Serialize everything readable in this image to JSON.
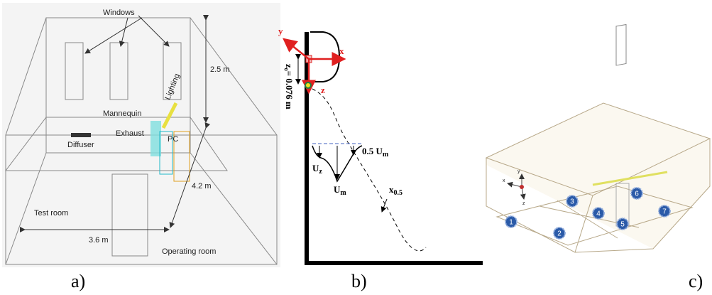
{
  "panel_a": {
    "windows": "Windows",
    "height": "2.5 m",
    "lighting": "Lighting",
    "mannequin": "Mannequin",
    "exhaust": "Exhaust",
    "pc": "PC",
    "diffuser": "Diffuser",
    "depth": "4.2 m",
    "test_room": "Test room",
    "width": "3.6 m",
    "operating_room": "Operating room",
    "caption": "a)"
  },
  "panel_b": {
    "axis_y": "y",
    "axis_x": "x",
    "axis_z": "z",
    "z0": "z₀= 0.076 m",
    "half_velocity": {
      "main": "0.5 U",
      "sub": "m"
    },
    "uz": {
      "main": "U",
      "sub": "z"
    },
    "um": {
      "main": "U",
      "sub": "m"
    },
    "x_half": {
      "main": "x",
      "sub": "0.5"
    },
    "caption": "b)"
  },
  "panel_c": {
    "axis_y": "y",
    "axis_x": "x",
    "axis_z": "z",
    "markers": [
      "1",
      "2",
      "3",
      "4",
      "5",
      "6",
      "7"
    ],
    "caption": "c)"
  }
}
